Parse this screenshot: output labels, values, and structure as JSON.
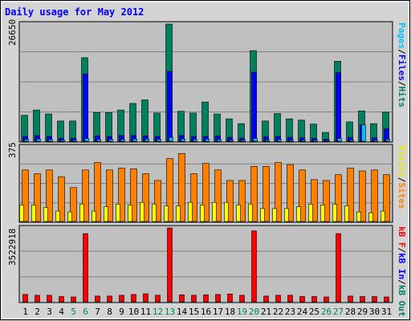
{
  "chart_data": [
    {
      "type": "bar",
      "title": "Daily usage for May 2012",
      "panel": "top",
      "y_max_label": "26650",
      "ylim": [
        0,
        26650
      ],
      "categories": [
        "1",
        "2",
        "3",
        "4",
        "5",
        "6",
        "7",
        "8",
        "9",
        "10",
        "11",
        "12",
        "13",
        "14",
        "15",
        "16",
        "17",
        "18",
        "19",
        "20",
        "21",
        "22",
        "23",
        "24",
        "25",
        "26",
        "27",
        "28",
        "29",
        "30",
        "31"
      ],
      "weekend_days": [
        "5",
        "6",
        "12",
        "13",
        "19",
        "20",
        "26",
        "27"
      ],
      "series": [
        {
          "name": "Hits",
          "color": "#00805c",
          "values": [
            5900,
            7100,
            6200,
            4600,
            4600,
            19000,
            6500,
            6500,
            7100,
            8600,
            9400,
            6400,
            26650,
            6800,
            6400,
            8900,
            6200,
            5100,
            4000,
            20600,
            4600,
            6300,
            5100,
            4800,
            3900,
            2000,
            18200,
            4400,
            6900,
            4000,
            6600
          ]
        },
        {
          "name": "Files",
          "color": "#0000ff",
          "values": [
            1100,
            1300,
            1100,
            700,
            700,
            15300,
            1200,
            1100,
            1300,
            1300,
            1200,
            1100,
            15900,
            1300,
            1100,
            1100,
            1200,
            900,
            700,
            15700,
            1000,
            1100,
            900,
            800,
            700,
            500,
            15600,
            900,
            3700,
            800,
            2800
          ]
        },
        {
          "name": "Pages",
          "color": "#00c0ff",
          "values": [
            400,
            500,
            400,
            300,
            300,
            600,
            400,
            400,
            400,
            500,
            500,
            400,
            900,
            500,
            400,
            500,
            400,
            300,
            300,
            600,
            300,
            400,
            300,
            300,
            300,
            200,
            600,
            300,
            3700,
            300,
            400
          ]
        }
      ],
      "legend": [
        "Pages",
        "/",
        "Files",
        "/",
        "Hits"
      ]
    },
    {
      "type": "bar",
      "panel": "middle",
      "y_max_label": "375",
      "ylim": [
        0,
        375
      ],
      "series": [
        {
          "name": "Sites",
          "color": "#ff8000",
          "values": [
            259,
            240,
            259,
            225,
            170,
            259,
            296,
            259,
            268,
            264,
            240,
            206,
            316,
            342,
            240,
            292,
            259,
            206,
            206,
            277,
            277,
            296,
            286,
            259,
            210,
            206,
            235,
            268,
            254,
            259,
            235
          ]
        },
        {
          "name": "Visits",
          "color": "#ffff00",
          "values": [
            83,
            83,
            70,
            52,
            48,
            87,
            52,
            74,
            87,
            83,
            96,
            87,
            78,
            78,
            96,
            83,
            96,
            96,
            83,
            87,
            65,
            65,
            65,
            74,
            87,
            83,
            87,
            78,
            48,
            44,
            52
          ]
        }
      ],
      "legend": [
        "Visits",
        "/",
        "Sites"
      ]
    },
    {
      "type": "bar",
      "panel": "bottom",
      "y_max_label": "3522918",
      "ylim": [
        0,
        3522918
      ],
      "series": [
        {
          "name": "kB In",
          "color": "#0000ff",
          "values": [
            0,
            0,
            0,
            0,
            0,
            0,
            0,
            0,
            0,
            0,
            0,
            0,
            0,
            0,
            0,
            0,
            0,
            0,
            0,
            0,
            0,
            0,
            0,
            0,
            0,
            0,
            0,
            0,
            0,
            0,
            0
          ]
        },
        {
          "name": "kB Out",
          "color": "#00805c",
          "values": [
            0,
            0,
            0,
            0,
            0,
            0,
            0,
            0,
            0,
            0,
            0,
            0,
            0,
            0,
            0,
            0,
            0,
            0,
            0,
            0,
            0,
            0,
            0,
            0,
            0,
            0,
            0,
            0,
            0,
            0,
            0
          ]
        },
        {
          "name": "kB F",
          "color": "#ff0000",
          "values": [
            350000,
            310000,
            310000,
            250000,
            230000,
            3250000,
            270000,
            270000,
            310000,
            350000,
            380000,
            310000,
            3522918,
            330000,
            310000,
            330000,
            350000,
            370000,
            310000,
            3380000,
            270000,
            310000,
            310000,
            250000,
            250000,
            230000,
            3250000,
            270000,
            250000,
            250000,
            230000
          ]
        }
      ],
      "legend": [
        "kB F",
        "/",
        "kB In",
        "/",
        "kB Out"
      ]
    }
  ],
  "colors": {
    "background": "#c0c0c0",
    "frame": "#d4d4d4",
    "title": "#0000ff",
    "grid": "#808080",
    "weekday_label": "#000000",
    "weekend_label": "#00805c"
  }
}
